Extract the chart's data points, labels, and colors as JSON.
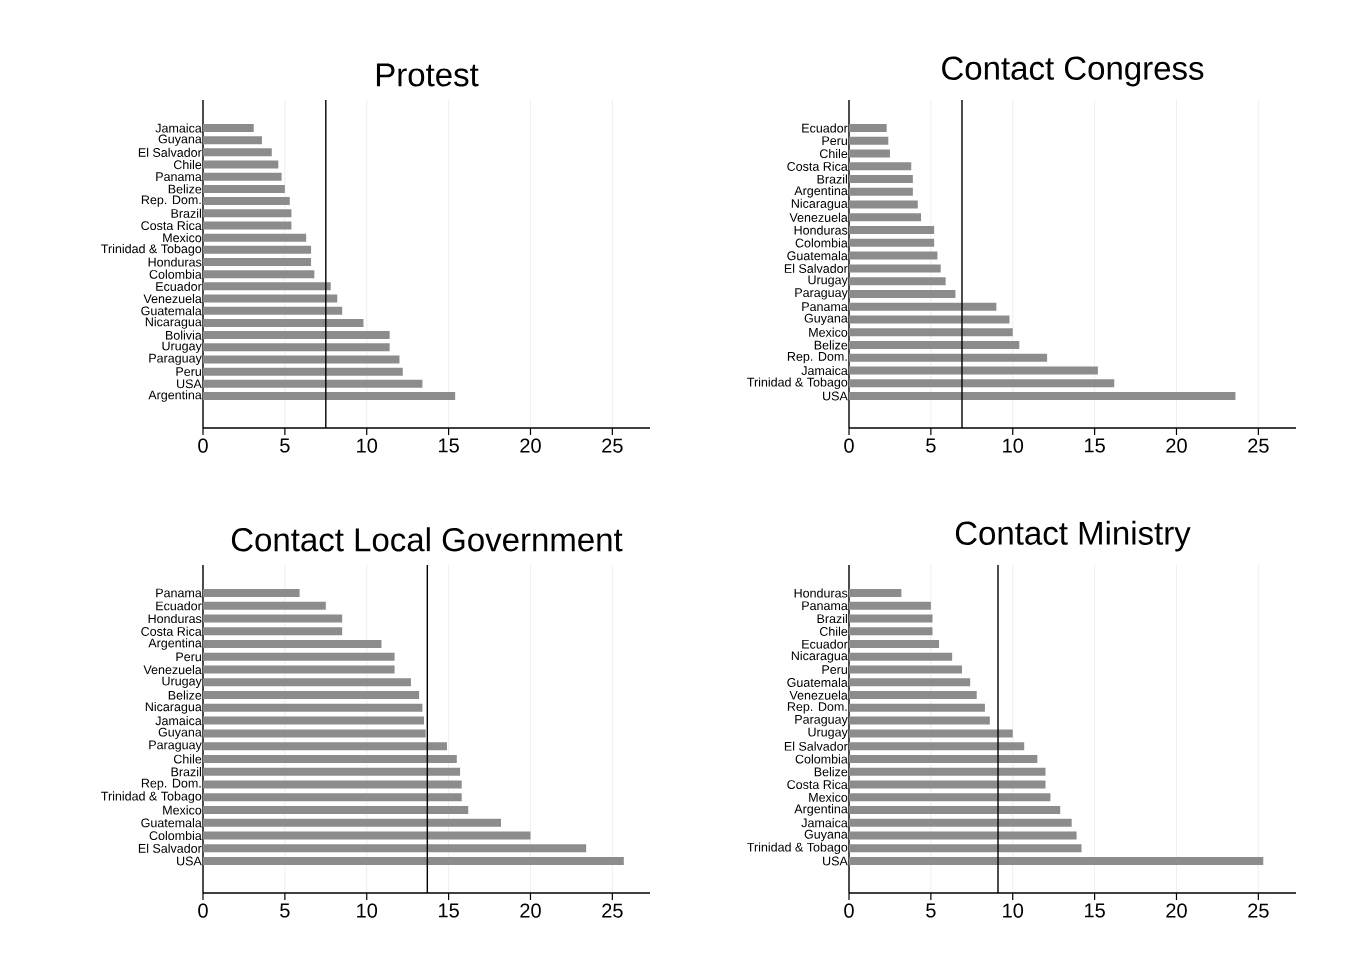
{
  "chart_data": [
    {
      "type": "bar",
      "orientation": "horizontal",
      "title": "Protest",
      "color": "#8c8c8c",
      "grid": "x",
      "xlim": [
        0,
        27.3
      ],
      "xticks": [
        0,
        5,
        10,
        15,
        20,
        25
      ],
      "categories": [
        "Jamaica",
        "Guyana",
        "El Salvador",
        "Chile",
        "Panama",
        "Belize",
        "Rep. Dom.",
        "Brazil",
        "Costa Rica",
        "Mexico",
        "Trinidad & Tobago",
        "Honduras",
        "Colombia",
        "Ecuador",
        "Venezuela",
        "Guatemala",
        "Nicaragua",
        "Bolivia",
        "Urugay",
        "Paraguay",
        "Peru",
        "USA",
        "Argentina"
      ],
      "values": [
        3.1,
        3.6,
        4.2,
        4.6,
        4.8,
        5.0,
        5.3,
        5.4,
        5.4,
        6.3,
        6.6,
        6.6,
        6.8,
        7.8,
        8.2,
        8.5,
        9.8,
        11.4,
        11.4,
        12.0,
        12.2,
        13.4,
        15.4
      ],
      "ref_lines": [
        {
          "axis": "x",
          "value": 7.5,
          "color": "#000000"
        }
      ]
    },
    {
      "type": "bar",
      "orientation": "horizontal",
      "title": "Contact Congress",
      "color": "#8c8c8c",
      "grid": "x",
      "xlim": [
        0,
        27.3
      ],
      "xticks": [
        0,
        5,
        10,
        15,
        20,
        25
      ],
      "categories": [
        "Ecuador",
        "Peru",
        "Chile",
        "Costa Rica",
        "Brazil",
        "Argentina",
        "Nicaragua",
        "Venezuela",
        "Honduras",
        "Colombia",
        "Guatemala",
        "El Salvador",
        "Urugay",
        "Paraguay",
        "Panama",
        "Guyana",
        "Mexico",
        "Belize",
        "Rep. Dom.",
        "Jamaica",
        "Trinidad & Tobago",
        "USA"
      ],
      "values": [
        2.3,
        2.4,
        2.5,
        3.8,
        3.9,
        3.9,
        4.2,
        4.4,
        5.2,
        5.2,
        5.4,
        5.6,
        5.9,
        6.5,
        9.0,
        9.8,
        10.0,
        10.4,
        12.1,
        15.2,
        16.2,
        23.6
      ],
      "ref_lines": [
        {
          "axis": "x",
          "value": 6.9,
          "color": "#000000"
        }
      ]
    },
    {
      "type": "bar",
      "orientation": "horizontal",
      "title": "Contact Local Government",
      "color": "#8c8c8c",
      "grid": "x",
      "xlim": [
        0,
        27.3
      ],
      "xticks": [
        0,
        5,
        10,
        15,
        20,
        25
      ],
      "categories": [
        "Panama",
        "Ecuador",
        "Honduras",
        "Costa Rica",
        "Argentina",
        "Peru",
        "Venezuela",
        "Urugay",
        "Belize",
        "Nicaragua",
        "Jamaica",
        "Guyana",
        "Paraguay",
        "Chile",
        "Brazil",
        "Rep. Dom.",
        "Trinidad & Tobago",
        "Mexico",
        "Guatemala",
        "Colombia",
        "El Salvador",
        "USA"
      ],
      "values": [
        5.9,
        7.5,
        8.5,
        8.5,
        10.9,
        11.7,
        11.7,
        12.7,
        13.2,
        13.4,
        13.5,
        13.6,
        14.9,
        15.5,
        15.7,
        15.8,
        15.8,
        16.2,
        18.2,
        20.0,
        23.4,
        25.7
      ],
      "ref_lines": [
        {
          "axis": "x",
          "value": 13.7,
          "color": "#000000"
        }
      ]
    },
    {
      "type": "bar",
      "orientation": "horizontal",
      "title": "Contact Ministry",
      "color": "#8c8c8c",
      "grid": "x",
      "xlim": [
        0,
        27.3
      ],
      "xticks": [
        0,
        5,
        10,
        15,
        20,
        25
      ],
      "categories": [
        "Honduras",
        "Panama",
        "Brazil",
        "Chile",
        "Ecuador",
        "Nicaragua",
        "Peru",
        "Guatemala",
        "Venezuela",
        "Rep. Dom.",
        "Paraguay",
        "Urugay",
        "El Salvador",
        "Colombia",
        "Belize",
        "Costa Rica",
        "Mexico",
        "Argentina",
        "Jamaica",
        "Guyana",
        "Trinidad & Tobago",
        "USA"
      ],
      "values": [
        3.2,
        5.0,
        5.1,
        5.1,
        5.5,
        6.3,
        6.9,
        7.4,
        7.8,
        8.3,
        8.6,
        10.0,
        10.7,
        11.5,
        12.0,
        12.0,
        12.3,
        12.9,
        13.6,
        13.9,
        14.2,
        25.3
      ],
      "ref_lines": [
        {
          "axis": "x",
          "value": 9.1,
          "color": "#000000"
        }
      ]
    }
  ]
}
